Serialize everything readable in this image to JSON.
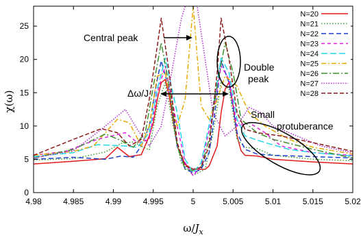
{
  "chart_data": {
    "type": "line",
    "xlabel": "ω/J_x",
    "ylabel": "χ(ω)",
    "xlim": [
      4.98,
      5.02
    ],
    "ylim": [
      0,
      28
    ],
    "xticks": [
      4.98,
      4.985,
      4.99,
      4.995,
      5,
      5.005,
      5.01,
      5.015,
      5.02
    ],
    "xtick_labels": [
      "4.98",
      "4.985",
      "4.99",
      "4.995",
      "5",
      "5.005",
      "5.01",
      "5.015",
      "5.02"
    ],
    "yticks": [
      0,
      5,
      10,
      15,
      20,
      25
    ],
    "ytick_labels": [
      "0",
      "5",
      "10",
      "15",
      "20",
      "25"
    ],
    "legend_position": "top-right",
    "annotations": {
      "central_peak": "Central peak",
      "delta": "Δω/J",
      "double_peak_line1": "Double",
      "double_peak_line2": "peak",
      "small_line1": "Small",
      "small_line2": "protuberance"
    },
    "series": [
      {
        "name": "N=20",
        "color": "#e41a1c",
        "dash": "",
        "x": [
          4.98,
          4.985,
          4.989,
          4.9905,
          4.992,
          4.9935,
          4.9945,
          4.995,
          4.9955,
          4.996,
          4.9965,
          4.997,
          4.998,
          4.999,
          5.0,
          5.0015,
          5.002,
          5.003,
          5.0035,
          5.004,
          5.0045,
          5.005,
          5.0055,
          5.006,
          5.0065,
          5.008,
          5.01,
          5.015,
          5.02
        ],
        "y": [
          4.3,
          4.7,
          5.1,
          6.8,
          5.4,
          5.7,
          8.5,
          10.5,
          14.0,
          16.5,
          17.0,
          14.5,
          7.0,
          4.2,
          3.5,
          3.5,
          4.0,
          7.0,
          12.0,
          15.5,
          16.6,
          13.0,
          8.5,
          6.3,
          5.6,
          5.5,
          5.0,
          4.6,
          4.3
        ]
      },
      {
        "name": "N=21",
        "color": "#33a02c",
        "dash": "1.5,2.5",
        "x": [
          4.98,
          4.985,
          4.989,
          4.991,
          4.9925,
          4.9945,
          4.9955,
          4.9965,
          4.9975,
          4.9985,
          5.0,
          5.0015,
          5.0025,
          5.0035,
          5.0045,
          5.0055,
          5.0065,
          5.008,
          5.01,
          5.015,
          5.02
        ],
        "y": [
          4.9,
          5.1,
          6.1,
          7.4,
          7.6,
          6.4,
          13.0,
          16.5,
          10.0,
          4.5,
          2.6,
          3.5,
          9.0,
          16.5,
          15.5,
          8.0,
          6.8,
          6.6,
          5.6,
          5.0,
          4.8
        ]
      },
      {
        "name": "N=22",
        "color": "#1f3fcf",
        "dash": "7,4",
        "x": [
          4.98,
          4.985,
          4.989,
          4.991,
          4.9925,
          4.9935,
          4.9945,
          4.9955,
          4.996,
          4.997,
          4.998,
          4.999,
          5.0,
          5.001,
          5.002,
          5.003,
          5.0035,
          5.0045,
          5.0055,
          5.0065,
          5.008,
          5.01,
          5.015,
          5.02
        ],
        "y": [
          5.0,
          5.3,
          5.0,
          5.5,
          5.3,
          7.0,
          10.0,
          17.0,
          19.8,
          15.5,
          7.0,
          3.5,
          3.0,
          3.5,
          6.0,
          14.5,
          19.8,
          16.5,
          9.0,
          6.5,
          5.8,
          5.6,
          5.4,
          5.2
        ]
      },
      {
        "name": "N=23",
        "color": "#e020e0",
        "dash": "5,4",
        "x": [
          4.98,
          4.984,
          4.988,
          4.9915,
          4.993,
          4.9945,
          4.9955,
          4.9965,
          4.998,
          4.999,
          5.0,
          5.001,
          5.0025,
          5.0035,
          5.0045,
          5.0055,
          5.007,
          5.009,
          5.011,
          5.015,
          5.02
        ],
        "y": [
          5.6,
          6.2,
          8.0,
          9.0,
          7.5,
          8.0,
          15.0,
          19.0,
          10.0,
          4.5,
          2.5,
          4.0,
          12.0,
          19.0,
          17.0,
          10.0,
          10.5,
          9.0,
          7.0,
          6.0,
          5.6
        ]
      },
      {
        "name": "N=24",
        "color": "#22d6e8",
        "dash": "9,4",
        "x": [
          4.98,
          4.985,
          4.988,
          4.9915,
          4.993,
          4.9945,
          4.9955,
          4.9965,
          4.998,
          4.999,
          5.0,
          5.001,
          5.0025,
          5.0035,
          5.0045,
          5.0055,
          5.0065,
          5.009,
          5.012,
          5.015,
          5.02
        ],
        "y": [
          5.4,
          6.0,
          7.2,
          7.0,
          6.8,
          9.0,
          15.5,
          20.2,
          12.0,
          5.0,
          3.0,
          4.5,
          13.0,
          20.2,
          18.0,
          11.0,
          8.5,
          7.5,
          6.5,
          6.0,
          5.5
        ]
      },
      {
        "name": "N=25",
        "color": "#e8a800",
        "dash": "7,3,2,3",
        "x": [
          4.98,
          4.985,
          4.9875,
          4.9905,
          4.992,
          4.9935,
          4.9945,
          4.9955,
          4.9965,
          4.9975,
          4.998,
          4.999,
          5.0,
          5.001,
          5.002,
          5.003,
          5.004,
          5.0055,
          5.007,
          5.009,
          5.012,
          5.015,
          5.02
        ],
        "y": [
          5.6,
          6.2,
          7.0,
          11.0,
          10.5,
          7.0,
          10.0,
          17.5,
          18.0,
          12.0,
          10.0,
          14.0,
          28.0,
          13.0,
          11.0,
          14.0,
          17.5,
          16.0,
          12.0,
          10.0,
          8.0,
          6.8,
          5.8
        ]
      },
      {
        "name": "N=26",
        "color": "#3f8f2f",
        "dash": "9,3,2,3",
        "x": [
          4.98,
          4.985,
          4.989,
          4.991,
          4.9925,
          4.994,
          4.995,
          4.996,
          4.997,
          4.998,
          4.999,
          5.0,
          5.001,
          5.002,
          5.003,
          5.004,
          5.005,
          5.006,
          5.008,
          5.01,
          5.015,
          5.02
        ],
        "y": [
          5.2,
          6.5,
          8.8,
          7.8,
          6.8,
          9.0,
          16.0,
          22.5,
          16.0,
          7.0,
          3.5,
          3.3,
          3.8,
          8.0,
          16.0,
          22.5,
          18.0,
          11.0,
          9.0,
          8.0,
          6.5,
          5.2
        ]
      },
      {
        "name": "N=27",
        "color": "#b026d0",
        "dash": "1.5,2",
        "x": [
          4.98,
          4.985,
          4.9885,
          4.9915,
          4.993,
          4.9945,
          4.996,
          4.997,
          4.9985,
          4.999,
          5.0,
          5.0005,
          5.001,
          5.0025,
          5.004,
          5.0055,
          5.007,
          5.0085,
          5.01,
          5.013,
          5.016,
          5.02
        ],
        "y": [
          5.2,
          6.3,
          9.5,
          12.5,
          9.5,
          7.0,
          10.0,
          16.0,
          26.0,
          28.0,
          28.0,
          28.0,
          24.0,
          12.0,
          8.5,
          10.0,
          12.8,
          12.0,
          10.0,
          8.5,
          7.0,
          6.0
        ]
      },
      {
        "name": "N=28",
        "color": "#8b1a1a",
        "dash": "6,3",
        "x": [
          4.98,
          4.985,
          4.9885,
          4.9905,
          4.992,
          4.9935,
          4.9945,
          4.9955,
          4.996,
          4.997,
          4.998,
          4.999,
          5.0,
          5.001,
          5.002,
          5.003,
          5.0035,
          5.0045,
          5.0055,
          5.0065,
          5.008,
          5.011,
          5.015,
          5.02
        ],
        "y": [
          5.6,
          8.0,
          9.6,
          9.0,
          7.0,
          8.0,
          14.0,
          22.0,
          26.2,
          18.0,
          7.5,
          4.0,
          3.5,
          3.8,
          7.0,
          18.0,
          26.2,
          20.0,
          12.0,
          9.5,
          9.0,
          8.5,
          7.5,
          6.2
        ]
      }
    ]
  }
}
